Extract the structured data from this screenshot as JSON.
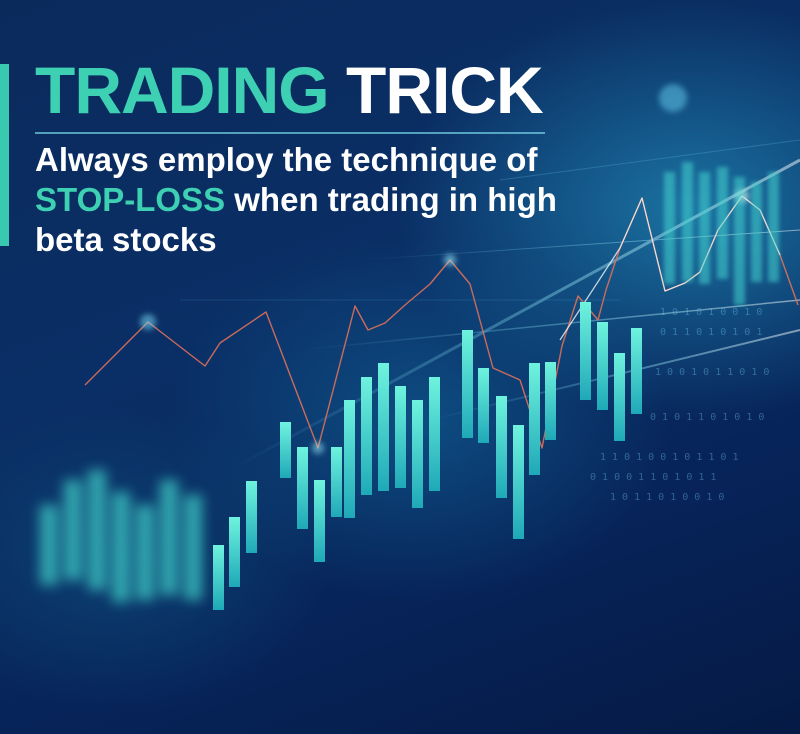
{
  "headline": {
    "title_part1": "TRADING",
    "title_part2": "TRICK",
    "line1": "Always employ the technique of",
    "highlight": "STOP-LOSS",
    "line2_rest": "when trading in high",
    "line3": "beta stocks"
  },
  "colors": {
    "accent": "#3dd0b3",
    "text": "#ffffff",
    "background": "#0a2f66",
    "line": "#e0705a"
  }
}
